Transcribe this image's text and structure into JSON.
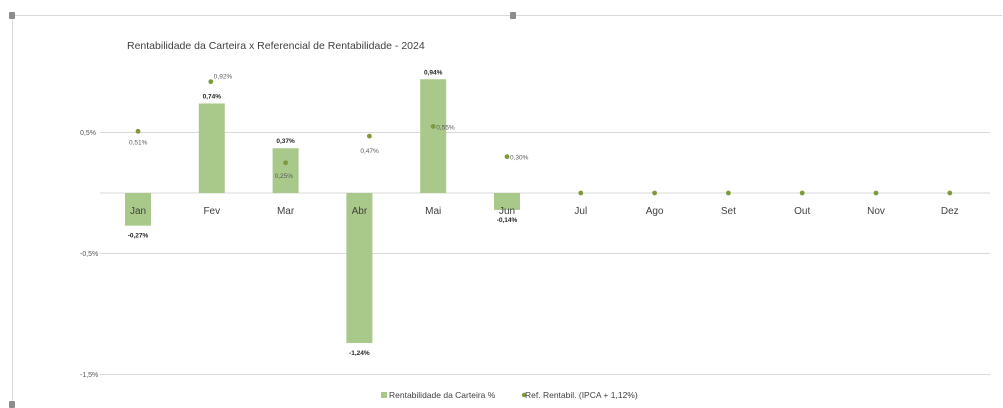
{
  "chart_data": {
    "type": "bar",
    "title": "Rentabilidade  da Carteira x Referencial de Rentabilidade - 2024",
    "categories": [
      "Jan",
      "Fev",
      "Mar",
      "Abr",
      "Mai",
      "Jun",
      "Jul",
      "Ago",
      "Set",
      "Out",
      "Nov",
      "Dez"
    ],
    "series": [
      {
        "name": "Rentabilidade da Carteira %",
        "kind": "bar",
        "color": "#a9c98a",
        "values": [
          -0.27,
          0.74,
          0.37,
          -1.24,
          0.94,
          -0.14,
          null,
          null,
          null,
          null,
          null,
          null
        ],
        "labels": [
          "-0,27%",
          "0,74%",
          "0,37%",
          "-1,24%",
          "0,94%",
          "-0,14%",
          "",
          "",
          "",
          "",
          "",
          ""
        ]
      },
      {
        "name": "Ref. Rentabil.  (IPCA + 1,12%)",
        "kind": "marker",
        "color": "#7f9a3a",
        "values": [
          0.51,
          0.92,
          0.25,
          0.47,
          0.55,
          0.3,
          0,
          0,
          0,
          0,
          0,
          0
        ],
        "labels": [
          "0,51%",
          "0,92%",
          "0,25%",
          "0,47%",
          "0,55%",
          "0,30%",
          "",
          "",
          "",
          "",
          "",
          ""
        ]
      }
    ],
    "yticks": [
      0.5,
      -0.5,
      -1.5
    ],
    "ytick_labels": [
      "0,5%",
      "-0,5%",
      "-1,5%"
    ],
    "ylim": [
      -1.5,
      1.0
    ],
    "grid": true,
    "legend": "bottom"
  }
}
